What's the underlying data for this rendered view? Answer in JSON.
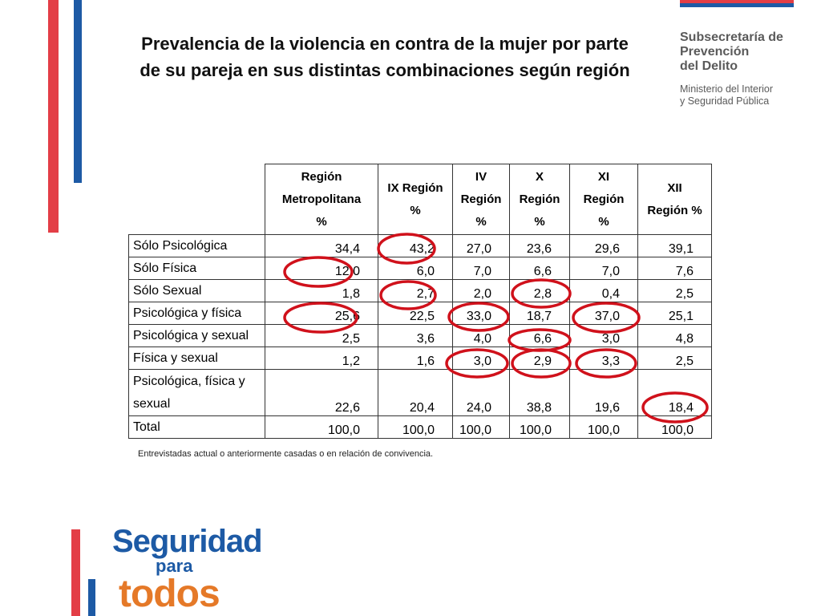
{
  "title_lines": [
    "Prevalencia de la violencia en contra de la mujer por parte",
    "de su pareja en sus distintas combinaciones según región"
  ],
  "agency": {
    "line1": "Subsecretaría de",
    "line2": "Prevención",
    "line3": "del Delito",
    "line4": "Ministerio del Interior",
    "line5": "y Seguridad Pública"
  },
  "table": {
    "headers": [
      "Región\nMetropolitana\n%",
      "IX Región\n%",
      "IV\nRegión\n%",
      "X\nRegión\n%",
      "XI\nRegión\n%",
      "XII\nRegión %"
    ],
    "rows": [
      {
        "label": "Sólo Psicológica",
        "values": [
          "34,4",
          "43,2",
          "27,0",
          "23,6",
          "29,6",
          "39,1"
        ]
      },
      {
        "label": "Sólo Física",
        "values": [
          "12,0",
          "6,0",
          "7,0",
          "6,6",
          "7,0",
          "7,6"
        ]
      },
      {
        "label": "Sólo Sexual",
        "values": [
          "1,8",
          "2,7",
          "2,0",
          "2,8",
          "0,4",
          "2,5"
        ]
      },
      {
        "label": "Psicológica y física",
        "values": [
          "25,6",
          "22,5",
          "33,0",
          "18,7",
          "37,0",
          "25,1"
        ]
      },
      {
        "label": "Psicológica y sexual",
        "values": [
          "2,5",
          "3,6",
          "4,0",
          "6,6",
          "3,0",
          "4,8"
        ]
      },
      {
        "label": "Física y sexual",
        "values": [
          "1,2",
          "1,6",
          "3,0",
          "2,9",
          "3,3",
          "2,5"
        ]
      },
      {
        "label": "Psicológica, física y sexual",
        "values": [
          "22,6",
          "20,4",
          "24,0",
          "38,8",
          "19,6",
          "18,4"
        ]
      },
      {
        "label": "Total",
        "values": [
          "100,0",
          "100,0",
          "100,0",
          "100,0",
          "100,0",
          "100,0"
        ]
      }
    ]
  },
  "note": "Entrevistadas actual o anteriormente casadas o en relación de convivencia.",
  "logo": {
    "line1": "Seguridad",
    "line2": "para",
    "line3": "todos"
  },
  "colors": {
    "red": "#e33e46",
    "blue": "#1d5aa5",
    "orange": "#e57928",
    "circle": "#d0111b"
  }
}
